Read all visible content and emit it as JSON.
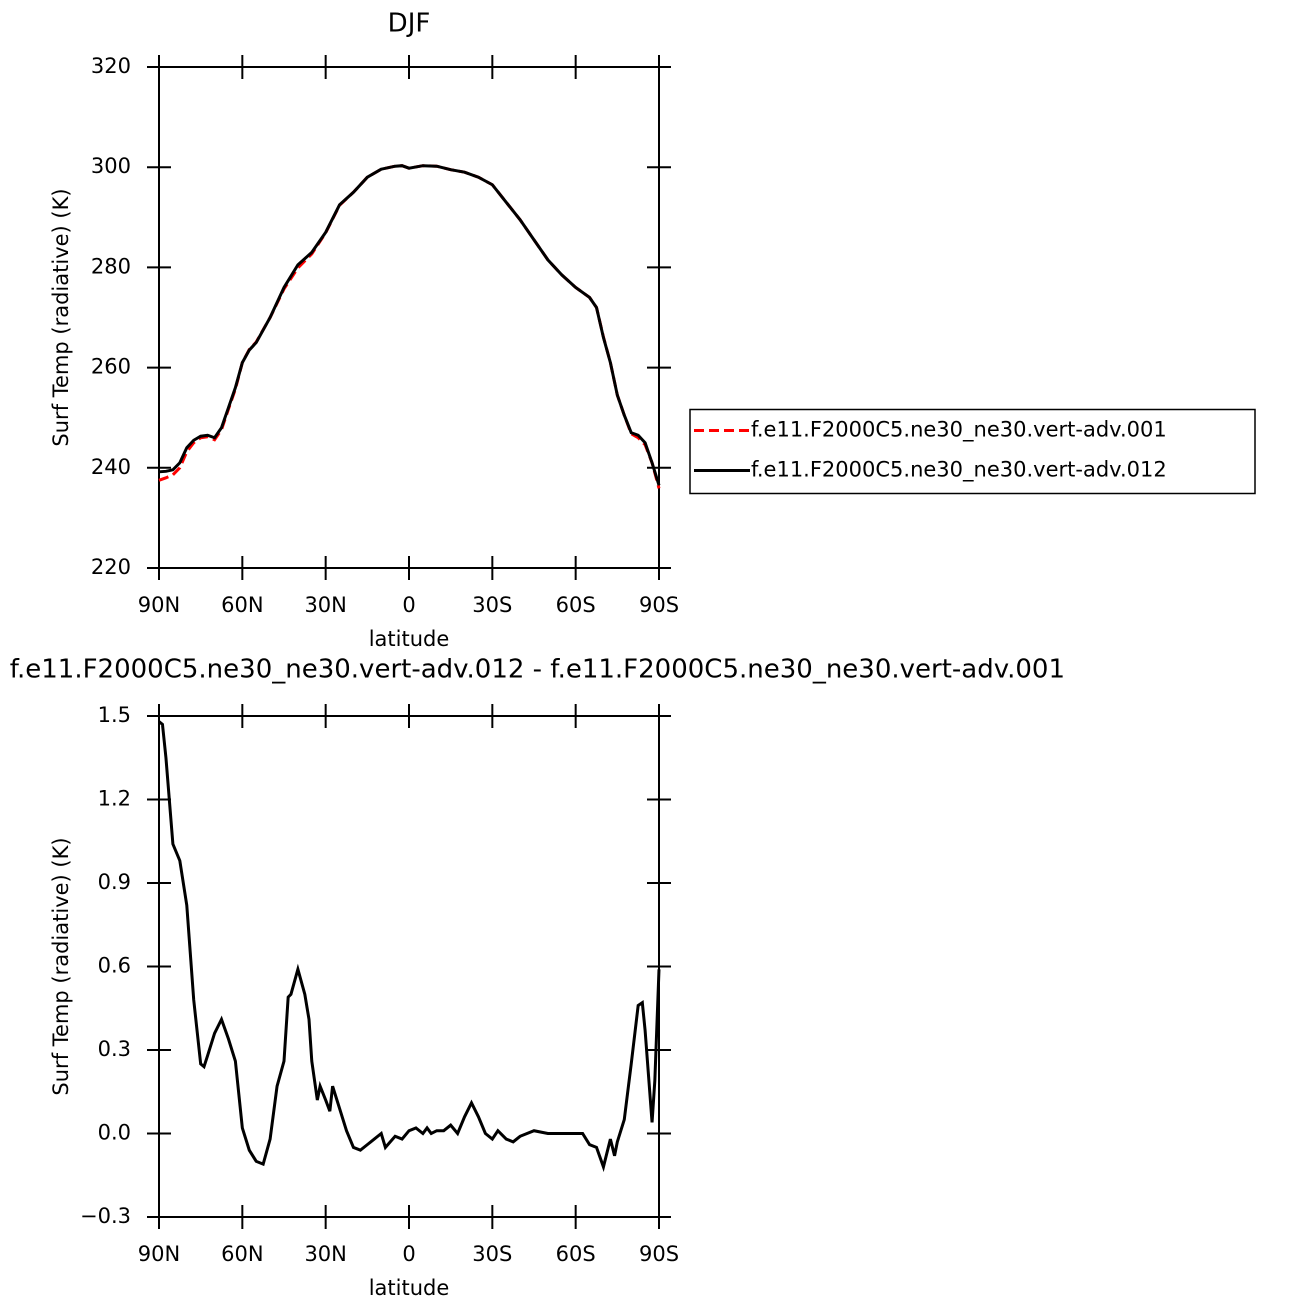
{
  "chart_data": [
    {
      "type": "line",
      "title": "DJF",
      "x_label": "latitude",
      "y_label": "Surf Temp (radiative) (K)",
      "x": [
        90,
        87.5,
        85,
        82.5,
        80,
        77.5,
        75,
        72.5,
        70,
        67.5,
        65,
        62.5,
        60,
        57.5,
        55,
        50,
        45,
        40,
        35,
        30,
        25,
        20,
        15,
        10,
        5,
        2.5,
        0,
        -5,
        -10,
        -15,
        -20,
        -25,
        -30,
        -35,
        -40,
        -45,
        -50,
        -55,
        -60,
        -65,
        -67.5,
        -70,
        -72.5,
        -75,
        -77.5,
        -80,
        -82.5,
        -85,
        -87.5,
        -90
      ],
      "series": [
        {
          "name": "f.e11.F2000C5.ne30_ne30.vert-adv.001",
          "color": "#ff0000",
          "dashed": true,
          "values": [
            237.5,
            238.0,
            238.6,
            240.0,
            243.2,
            245.0,
            246.0,
            246.2,
            245.6,
            247.6,
            251.7,
            255.7,
            261.0,
            263.6,
            265.1,
            270.0,
            275.7,
            279.9,
            282.7,
            286.9,
            292.4,
            295.0,
            298.0,
            299.6,
            300.2,
            300.3,
            299.8,
            300.3,
            300.2,
            299.5,
            299.0,
            298.0,
            296.5,
            293.0,
            289.5,
            285.5,
            281.5,
            278.5,
            276.0,
            274.0,
            272.0,
            266.1,
            261.0,
            254.5,
            250.5,
            246.8,
            246.0,
            244.6,
            241.0,
            235.9
          ]
        },
        {
          "name": "f.e11.F2000C5.ne30_ne30.vert-adv.012",
          "color": "#000000",
          "dashed": false,
          "values": [
            239.2,
            239.3,
            239.6,
            241.0,
            244.0,
            245.5,
            246.3,
            246.5,
            246.0,
            248.0,
            252.0,
            256.0,
            261.0,
            263.5,
            265.0,
            270.0,
            276.0,
            280.5,
            283.0,
            287.0,
            292.5,
            295.0,
            298.0,
            299.6,
            300.2,
            300.3,
            299.8,
            300.3,
            300.2,
            299.5,
            299.0,
            298.0,
            296.5,
            293.0,
            289.5,
            285.5,
            281.5,
            278.5,
            276.0,
            274.0,
            272.0,
            266.0,
            261.0,
            254.5,
            250.5,
            247.0,
            246.5,
            245.0,
            241.0,
            236.5
          ]
        }
      ],
      "xlim": [
        90,
        -90
      ],
      "xticks": [
        {
          "value": 90,
          "label": "90N"
        },
        {
          "value": 60,
          "label": "60N"
        },
        {
          "value": 30,
          "label": "30N"
        },
        0,
        {
          "value": -30,
          "label": "30S"
        },
        {
          "value": -60,
          "label": "60S"
        },
        {
          "value": -90,
          "label": "90S"
        }
      ],
      "ylim": [
        220,
        320
      ],
      "yticks": [
        220,
        240,
        260,
        280,
        300,
        320
      ],
      "legend": "right"
    },
    {
      "type": "line",
      "title": "f.e11.F2000C5.ne30_ne30.vert-adv.012 - f.e11.F2000C5.ne30_ne30.vert-adv.001",
      "x_label": "latitude",
      "y_label": "Surf Temp (radiative) (K)",
      "x": [
        90,
        88.75,
        87.5,
        85,
        82.5,
        80,
        77.5,
        75,
        73.8,
        72.5,
        70,
        67.5,
        65,
        62.5,
        60,
        57.5,
        55,
        52.5,
        50,
        47.5,
        45,
        43.5,
        42.5,
        40,
        37.5,
        36,
        35,
        33,
        32,
        30,
        28.5,
        27.5,
        25,
        22.5,
        20,
        17.5,
        15,
        12.5,
        10,
        8.5,
        5,
        2.5,
        0,
        -2.5,
        -5,
        -6.5,
        -8,
        -10,
        -12.5,
        -15,
        -17.5,
        -20,
        -22.5,
        -25,
        -27.5,
        -30,
        -32,
        -35,
        -37.5,
        -40,
        -45,
        -50,
        -55,
        -60,
        -62.5,
        -65,
        -67.5,
        -70,
        -72.5,
        -74,
        -75,
        -77.5,
        -79,
        -80,
        -82.5,
        -84,
        -85,
        -87.5,
        -88.5,
        -90
      ],
      "series": [
        {
          "name": "f.e11.F2000C5.ne30_ne30.vert-adv.012 - f.e11.F2000C5.ne30_ne30.vert-adv.001",
          "color": "#000000",
          "dashed": false,
          "values": [
            1.48,
            1.47,
            1.35,
            1.04,
            0.98,
            0.82,
            0.48,
            0.25,
            0.24,
            0.28,
            0.36,
            0.41,
            0.34,
            0.26,
            0.02,
            -0.06,
            -0.1,
            -0.11,
            -0.02,
            0.17,
            0.26,
            0.49,
            0.5,
            0.59,
            0.5,
            0.41,
            0.26,
            0.12,
            0.17,
            0.12,
            0.08,
            0.17,
            0.09,
            0.01,
            -0.05,
            -0.06,
            -0.04,
            -0.02,
            0.0,
            -0.05,
            -0.01,
            -0.02,
            0.01,
            0.02,
            0.0,
            0.02,
            0.0,
            0.01,
            0.01,
            0.03,
            0.0,
            0.06,
            0.11,
            0.06,
            0.0,
            -0.02,
            0.01,
            -0.02,
            -0.03,
            -0.01,
            0.01,
            0.0,
            0.0,
            0.0,
            0.0,
            -0.04,
            -0.05,
            -0.12,
            -0.02,
            -0.08,
            -0.03,
            0.05,
            0.17,
            0.25,
            0.46,
            0.47,
            0.37,
            0.04,
            0.19,
            0.59
          ]
        }
      ],
      "xlim": [
        90,
        -90
      ],
      "xticks": [
        {
          "value": 90,
          "label": "90N"
        },
        {
          "value": 60,
          "label": "60N"
        },
        {
          "value": 30,
          "label": "30N"
        },
        0,
        {
          "value": -30,
          "label": "30S"
        },
        {
          "value": -60,
          "label": "60S"
        },
        {
          "value": -90,
          "label": "90S"
        }
      ],
      "ylim": [
        -0.3,
        1.5
      ],
      "yticks": [
        {
          "value": -0.3,
          "label": "−0.3"
        },
        {
          "value": 0,
          "label": "0.0"
        },
        0.3,
        0.6,
        0.9,
        1.2,
        1.5
      ]
    }
  ]
}
